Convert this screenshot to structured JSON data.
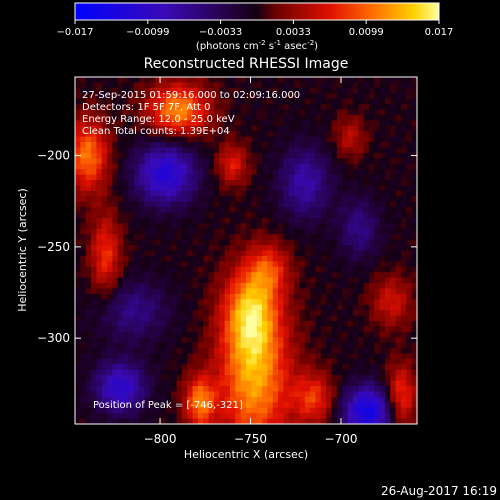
{
  "chart_data": {
    "type": "heatmap",
    "title": "Reconstructed RHESSI Image",
    "xlabel": "Heliocentric X (arcsec)",
    "ylabel": "Heliocentric Y (arcsec)",
    "xlim": [
      -847,
      -658
    ],
    "ylim": [
      -347,
      -157
    ],
    "x_ticks": [
      -800,
      -750,
      -700
    ],
    "y_ticks": [
      -300,
      -250,
      -200
    ],
    "grid": false,
    "colorbar": {
      "position": "top",
      "range": [
        -0.017,
        0.017
      ],
      "ticks": [
        "-0.017",
        "-0.0099",
        "-0.0033",
        "0.0033",
        "0.0099",
        "0.017"
      ],
      "label_main": "(photons cm",
      "label_sup1": "-2",
      "label_mid1": " s",
      "label_sup2": "-1",
      "label_mid2": " asec",
      "label_sup3": "-2",
      "label_end": ")"
    },
    "annotations": [
      "27-Sep-2015 01:59:16.000 to 02:09:16.000",
      "Detectors: 1F 5F 7F, Att 0",
      "Energy Range: 12.0 - 25.0 keV",
      "Clean    Total counts: 1.39E+04"
    ],
    "peak_label": "Position of Peak = [-746,-321]",
    "peak_position": [
      -746,
      -321
    ],
    "sources": [
      {
        "x": -748,
        "y": -320,
        "sx": 14,
        "sy": 30,
        "amp": 0.013
      },
      {
        "x": -750,
        "y": -285,
        "sx": 10,
        "sy": 16,
        "amp": 0.01
      },
      {
        "x": -740,
        "y": -262,
        "sx": 8,
        "sy": 10,
        "amp": 0.007
      },
      {
        "x": -778,
        "y": -335,
        "sx": 6,
        "sy": 10,
        "amp": 0.011
      },
      {
        "x": -715,
        "y": -333,
        "sx": 8,
        "sy": 10,
        "amp": 0.008
      },
      {
        "x": -667,
        "y": -332,
        "sx": 6,
        "sy": 12,
        "amp": 0.009
      },
      {
        "x": -840,
        "y": -200,
        "sx": 8,
        "sy": 14,
        "amp": 0.011
      },
      {
        "x": -790,
        "y": -175,
        "sx": 12,
        "sy": 10,
        "amp": 0.012
      },
      {
        "x": -830,
        "y": -255,
        "sx": 6,
        "sy": 16,
        "amp": 0.008
      },
      {
        "x": -760,
        "y": -205,
        "sx": 6,
        "sy": 8,
        "amp": 0.007
      },
      {
        "x": -672,
        "y": -280,
        "sx": 8,
        "sy": 10,
        "amp": 0.006
      },
      {
        "x": -695,
        "y": -190,
        "sx": 6,
        "sy": 8,
        "amp": 0.005
      },
      {
        "x": -797,
        "y": -210,
        "sx": 12,
        "sy": 12,
        "amp": -0.012
      },
      {
        "x": -822,
        "y": -327,
        "sx": 10,
        "sy": 10,
        "amp": -0.011
      },
      {
        "x": -685,
        "y": -340,
        "sx": 10,
        "sy": 10,
        "amp": -0.014
      },
      {
        "x": -720,
        "y": -215,
        "sx": 10,
        "sy": 14,
        "amp": -0.008
      },
      {
        "x": -815,
        "y": -285,
        "sx": 14,
        "sy": 12,
        "amp": -0.006
      },
      {
        "x": -690,
        "y": -240,
        "sx": 8,
        "sy": 12,
        "amp": -0.006
      }
    ]
  },
  "footer": {
    "timestamp": "26-Aug-2017 16:19"
  }
}
